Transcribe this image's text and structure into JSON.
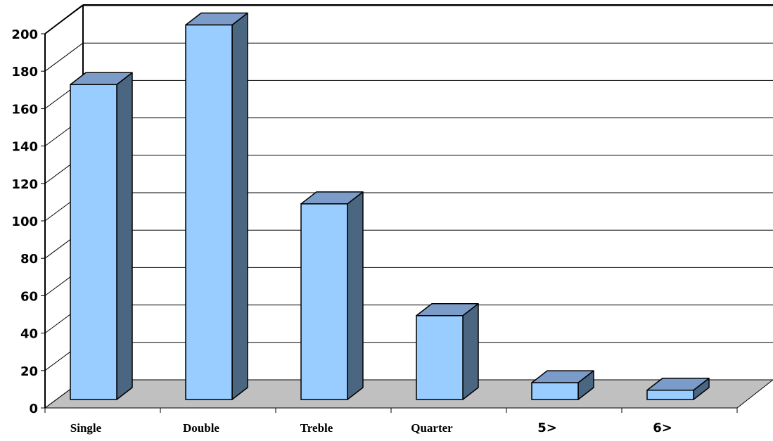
{
  "chart_data": {
    "type": "bar",
    "style": "3d-column",
    "categories": [
      "Single",
      "Double",
      "Treble",
      "Quarter",
      "5>",
      "6>"
    ],
    "values": [
      169,
      201,
      105,
      45,
      9,
      5
    ],
    "ylim": [
      0,
      200
    ],
    "yticks": [
      "0",
      "20",
      "40",
      "60",
      "80",
      "100",
      "120",
      "140",
      "160",
      "180",
      "200"
    ],
    "grid": true,
    "legend": "none",
    "colors": {
      "bar_front": "#99ccff",
      "bar_side": "#4a6681",
      "bar_top": "#7b9cc9",
      "floor": "#c0c0c0",
      "gridline": "#000000"
    }
  }
}
